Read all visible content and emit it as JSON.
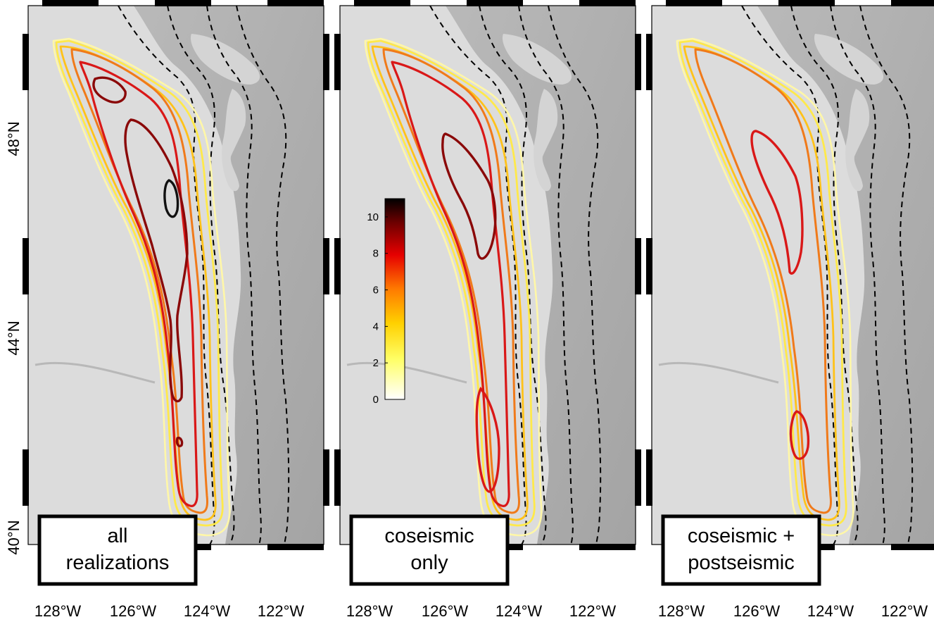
{
  "panels": [
    {
      "id": "all",
      "label_lines": [
        "all",
        "realizations"
      ]
    },
    {
      "id": "coseismic",
      "label_lines": [
        "coseismic",
        "only"
      ]
    },
    {
      "id": "cps",
      "label_lines": [
        "coseismic +",
        "postseismic"
      ]
    }
  ],
  "x_ticks": [
    "128°W",
    "126°W",
    "124°W",
    "122°W"
  ],
  "y_ticks": [
    "48°N",
    "44°N",
    "40°N"
  ],
  "colorbar": {
    "ticks": [
      "0",
      "2",
      "4",
      "6",
      "8",
      "10"
    ],
    "colormap": "hot (white-yellow-red-black)"
  },
  "colors": {
    "level_1": "#fff7a8",
    "level_2": "#ffe94a",
    "level_3": "#ffc21a",
    "level_4": "#f07a1a",
    "level_5": "#d91818",
    "level_6": "#8a0808",
    "level_7": "#111111",
    "trench": "#000000"
  }
}
